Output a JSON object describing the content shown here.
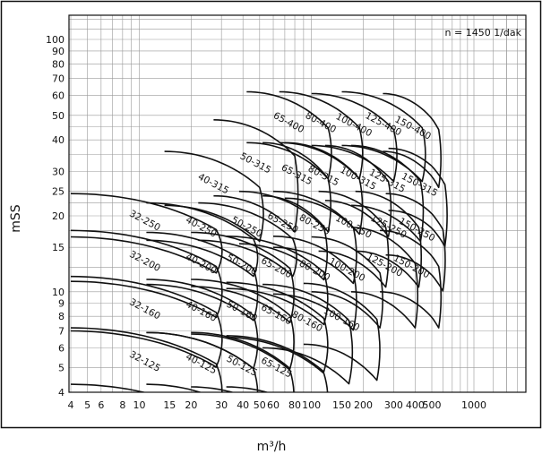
{
  "chart_data": {
    "type": "line",
    "title": "",
    "annotation": "n = 1450 1/dak",
    "xlabel": "m³/h",
    "ylabel": "mSS",
    "x_scale": "log",
    "y_scale": "log",
    "xlim": [
      4,
      3000
    ],
    "ylim": [
      4,
      120
    ],
    "grid": true,
    "colors": {
      "line": "#111111",
      "grid": "#999999",
      "frame": "#111111"
    },
    "x_tick_labels": [
      {
        "value": 4,
        "label": "4"
      },
      {
        "value": 5,
        "label": "5"
      },
      {
        "value": 6,
        "label": "6"
      },
      {
        "value": 8,
        "label": "8"
      },
      {
        "value": 10,
        "label": "10"
      },
      {
        "value": 15,
        "label": "15"
      },
      {
        "value": 20,
        "label": "20"
      },
      {
        "value": 30,
        "label": "30"
      },
      {
        "value": 40,
        "label": "40"
      },
      {
        "value": 50,
        "label": "50"
      },
      {
        "value": 60,
        "label": "60"
      },
      {
        "value": 80,
        "label": "80"
      },
      {
        "value": 100,
        "label": "100"
      },
      {
        "value": 150,
        "label": "150"
      },
      {
        "value": 200,
        "label": "200"
      },
      {
        "value": 300,
        "label": "300"
      },
      {
        "value": 400,
        "label": "400"
      },
      {
        "value": 500,
        "label": "500"
      },
      {
        "value": 1000,
        "label": "1000"
      }
    ],
    "y_tick_labels": [
      {
        "value": 4,
        "label": "4"
      },
      {
        "value": 5,
        "label": "5"
      },
      {
        "value": 6,
        "label": "6"
      },
      {
        "value": 7,
        "label": "7"
      },
      {
        "value": 8,
        "label": "8"
      },
      {
        "value": 9,
        "label": "9"
      },
      {
        "value": 10,
        "label": "10"
      },
      {
        "value": 15,
        "label": "15"
      },
      {
        "value": 20,
        "label": "20"
      },
      {
        "value": 25,
        "label": "25"
      },
      {
        "value": 30,
        "label": "30"
      },
      {
        "value": 40,
        "label": "40"
      },
      {
        "value": 50,
        "label": "50"
      },
      {
        "value": 60,
        "label": "60"
      },
      {
        "value": 70,
        "label": "70"
      },
      {
        "value": 80,
        "label": "80"
      },
      {
        "value": 90,
        "label": "90"
      },
      {
        "value": 100,
        "label": "100"
      }
    ],
    "series": [
      {
        "name": "32-125",
        "q_min": 4,
        "q_max": 28,
        "h_top": 7.2,
        "h_bottom": 4.3
      },
      {
        "name": "32-160",
        "q_min": 4,
        "q_max": 28,
        "h_top": 11.5,
        "h_bottom": 7.0
      },
      {
        "name": "32-200",
        "q_min": 4,
        "q_max": 28,
        "h_top": 17.5,
        "h_bottom": 11.0
      },
      {
        "name": "32-250",
        "q_min": 4,
        "q_max": 28,
        "h_top": 24.5,
        "h_bottom": 16.5
      },
      {
        "name": "40-125",
        "q_min": 11,
        "q_max": 46,
        "h_top": 6.9,
        "h_bottom": 4.3
      },
      {
        "name": "40-160",
        "q_min": 11,
        "q_max": 46,
        "h_top": 11.2,
        "h_bottom": 6.9
      },
      {
        "name": "40-200",
        "q_min": 11,
        "q_max": 46,
        "h_top": 17.2,
        "h_bottom": 10.7
      },
      {
        "name": "40-250",
        "q_min": 11,
        "q_max": 46,
        "h_top": 22.5,
        "h_bottom": 16.0
      },
      {
        "name": "40-315",
        "q_min": 14,
        "q_max": 50,
        "h_top": 36,
        "h_bottom": 22
      },
      {
        "name": "50-125",
        "q_min": 20,
        "q_max": 75,
        "h_top": 6.8,
        "h_bottom": 4.2
      },
      {
        "name": "50-160",
        "q_min": 20,
        "q_max": 75,
        "h_top": 11.2,
        "h_bottom": 6.9
      },
      {
        "name": "50-200",
        "q_min": 20,
        "q_max": 75,
        "h_top": 17.2,
        "h_bottom": 10.5
      },
      {
        "name": "50-250",
        "q_min": 22,
        "q_max": 78,
        "h_top": 22.5,
        "h_bottom": 16.0
      },
      {
        "name": "50-315",
        "q_min": 27,
        "q_max": 80,
        "h_top": 48,
        "h_bottom": 24
      },
      {
        "name": "65-125",
        "q_min": 32,
        "q_max": 118,
        "h_top": 6.6,
        "h_bottom": 4.2
      },
      {
        "name": "65-160",
        "q_min": 32,
        "q_max": 118,
        "h_top": 10.9,
        "h_bottom": 6.7
      },
      {
        "name": "65-200",
        "q_min": 32,
        "q_max": 118,
        "h_top": 16.6,
        "h_bottom": 10.3
      },
      {
        "name": "65-250",
        "q_min": 38,
        "q_max": 118,
        "h_top": 25,
        "h_bottom": 15.5
      },
      {
        "name": "65-315",
        "q_min": 52,
        "q_max": 125,
        "h_top": 39,
        "h_bottom": 24
      },
      {
        "name": "65-400",
        "q_min": 42,
        "q_max": 125,
        "h_top": 62,
        "h_bottom": 39
      },
      {
        "name": "80-160",
        "q_min": 52,
        "q_max": 165,
        "h_top": 10.7,
        "h_bottom": 6.0
      },
      {
        "name": "80-200",
        "q_min": 60,
        "q_max": 175,
        "h_top": 16.6,
        "h_bottom": 9.8
      },
      {
        "name": "80-250",
        "q_min": 60,
        "q_max": 175,
        "h_top": 25,
        "h_bottom": 15
      },
      {
        "name": "80-315",
        "q_min": 70,
        "q_max": 190,
        "h_top": 39,
        "h_bottom": 23.5
      },
      {
        "name": "80-400",
        "q_min": 65,
        "q_max": 190,
        "h_top": 62,
        "h_bottom": 39
      },
      {
        "name": "100-160",
        "q_min": 90,
        "q_max": 240,
        "h_top": 10.8,
        "h_bottom": 6.2
      },
      {
        "name": "100-200",
        "q_min": 100,
        "q_max": 250,
        "h_top": 16.5,
        "h_bottom": 10
      },
      {
        "name": "100-250",
        "q_min": 110,
        "q_max": 270,
        "h_top": 25,
        "h_bottom": 14.5
      },
      {
        "name": "100-315",
        "q_min": 120,
        "q_max": 280,
        "h_top": 38,
        "h_bottom": 23
      },
      {
        "name": "100-400",
        "q_min": 100,
        "q_max": 300,
        "h_top": 61,
        "h_bottom": 38
      },
      {
        "name": "125-200",
        "q_min": 170,
        "q_max": 400,
        "h_top": 18,
        "h_bottom": 10
      },
      {
        "name": "125-250",
        "q_min": 180,
        "q_max": 420,
        "h_top": 25,
        "h_bottom": 14.5
      },
      {
        "name": "125-315",
        "q_min": 170,
        "q_max": 430,
        "h_top": 38,
        "h_bottom": 22
      },
      {
        "name": "125-400",
        "q_min": 150,
        "q_max": 440,
        "h_top": 62,
        "h_bottom": 38
      },
      {
        "name": "150-200",
        "q_min": 250,
        "q_max": 560,
        "h_top": 17.5,
        "h_bottom": 10
      },
      {
        "name": "150-250",
        "q_min": 270,
        "q_max": 600,
        "h_top": 24.5,
        "h_bottom": 14
      },
      {
        "name": "150-315",
        "q_min": 280,
        "q_max": 620,
        "h_top": 37,
        "h_bottom": 21
      },
      {
        "name": "150-400",
        "q_min": 260,
        "q_max": 560,
        "h_top": 61,
        "h_bottom": 36
      }
    ]
  }
}
